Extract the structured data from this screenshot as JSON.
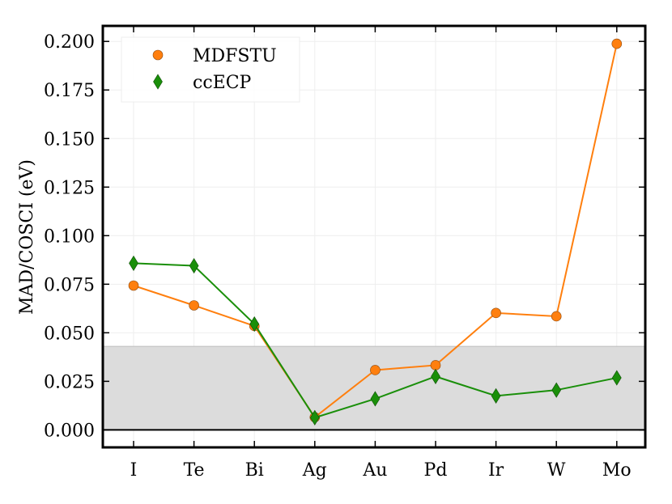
{
  "chart_data": {
    "type": "line",
    "title": "",
    "xlabel": "",
    "ylabel": "MAD/COSCI (eV)",
    "categories": [
      "I",
      "Te",
      "Bi",
      "Ag",
      "Au",
      "Pd",
      "Ir",
      "W",
      "Mo"
    ],
    "ylim": [
      -0.009,
      0.208
    ],
    "yticks": [
      "0.000",
      "0.025",
      "0.050",
      "0.075",
      "0.100",
      "0.125",
      "0.150",
      "0.175",
      "0.200"
    ],
    "grid": true,
    "legend_position": "top-left",
    "shaded_band": {
      "from": 0.0,
      "to": 0.043,
      "color": "#dcdcdc"
    },
    "series": [
      {
        "name": "MDFSTU",
        "marker": "circle",
        "color": "#ff7f0e",
        "values": [
          0.0743,
          0.0641,
          0.0535,
          0.0065,
          0.0308,
          0.0333,
          0.0602,
          0.0585,
          0.1988
        ]
      },
      {
        "name": "ccECP",
        "marker": "diamond",
        "color": "#1a8f0a",
        "values": [
          0.0858,
          0.0845,
          0.0545,
          0.0063,
          0.016,
          0.0275,
          0.0175,
          0.0205,
          0.0268
        ]
      }
    ]
  }
}
